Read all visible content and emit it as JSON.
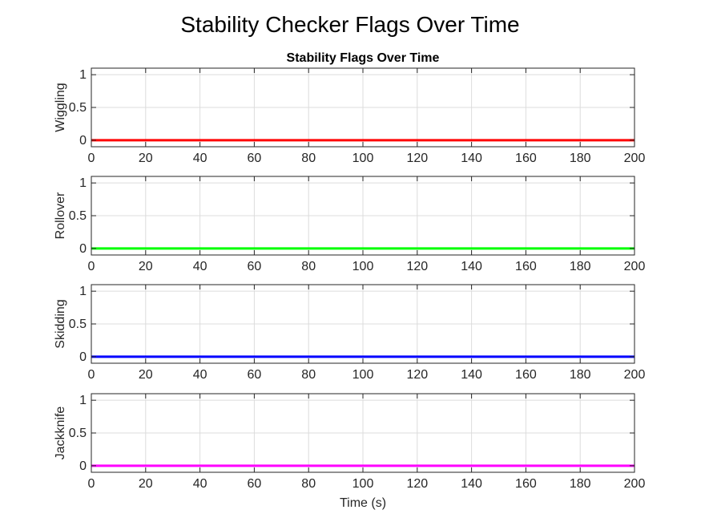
{
  "figure": {
    "title": "Stability Checker Flags Over Time"
  },
  "chart_data": [
    {
      "type": "line",
      "title": "Stability Flags Over Time",
      "xlabel": "",
      "ylabel": "Wiggling",
      "xlim": [
        0,
        200
      ],
      "ylim": [
        -0.1,
        1.1
      ],
      "xticks": [
        0,
        20,
        40,
        60,
        80,
        100,
        120,
        140,
        160,
        180,
        200
      ],
      "yticks": [
        0,
        0.5,
        1
      ],
      "grid": true,
      "series": [
        {
          "color": "#ff0000",
          "x": [
            0,
            200
          ],
          "y": [
            0,
            0
          ]
        }
      ]
    },
    {
      "type": "line",
      "title": "",
      "xlabel": "",
      "ylabel": "Rollover",
      "xlim": [
        0,
        200
      ],
      "ylim": [
        -0.1,
        1.1
      ],
      "xticks": [
        0,
        20,
        40,
        60,
        80,
        100,
        120,
        140,
        160,
        180,
        200
      ],
      "yticks": [
        0,
        0.5,
        1
      ],
      "grid": true,
      "series": [
        {
          "color": "#00ff00",
          "x": [
            0,
            200
          ],
          "y": [
            0,
            0
          ]
        }
      ]
    },
    {
      "type": "line",
      "title": "",
      "xlabel": "",
      "ylabel": "Skidding",
      "xlim": [
        0,
        200
      ],
      "ylim": [
        -0.1,
        1.1
      ],
      "xticks": [
        0,
        20,
        40,
        60,
        80,
        100,
        120,
        140,
        160,
        180,
        200
      ],
      "yticks": [
        0,
        0.5,
        1
      ],
      "grid": true,
      "series": [
        {
          "color": "#0000ff",
          "x": [
            0,
            200
          ],
          "y": [
            0,
            0
          ]
        }
      ]
    },
    {
      "type": "line",
      "title": "",
      "xlabel": "Time (s)",
      "ylabel": "Jackknife",
      "xlim": [
        0,
        200
      ],
      "ylim": [
        -0.1,
        1.1
      ],
      "xticks": [
        0,
        20,
        40,
        60,
        80,
        100,
        120,
        140,
        160,
        180,
        200
      ],
      "yticks": [
        0,
        0.5,
        1
      ],
      "grid": true,
      "series": [
        {
          "color": "#ff00ff",
          "x": [
            0,
            200
          ],
          "y": [
            0,
            0
          ]
        }
      ]
    }
  ]
}
